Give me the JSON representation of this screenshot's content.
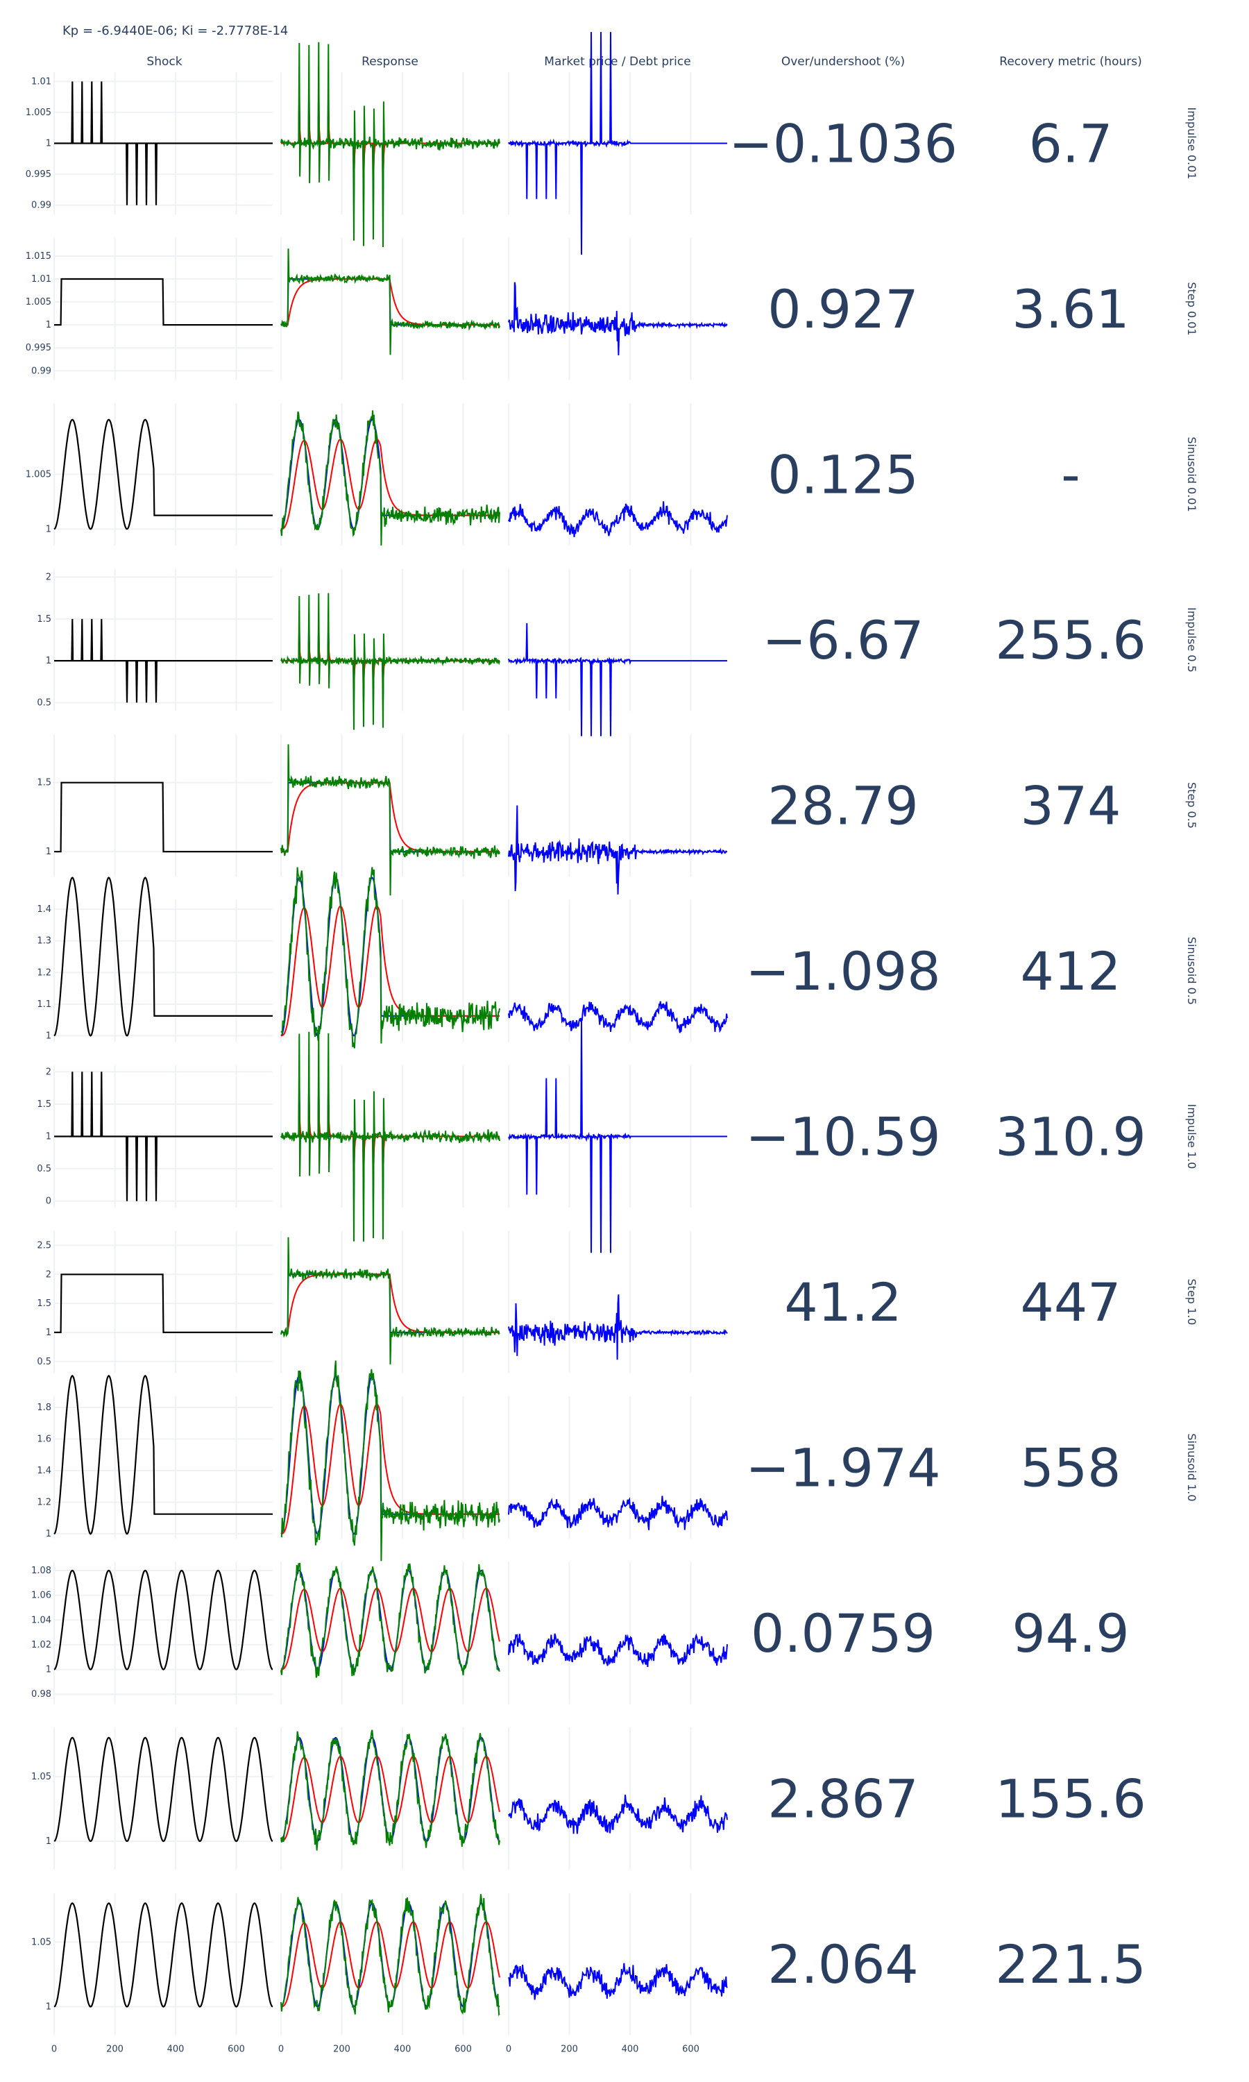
{
  "title": "Kp = -6.9440E-06; Ki = -2.7778E-14",
  "column_titles": [
    "Shock",
    "Response",
    "Market price / Debt price",
    "Over/undershoot (%)",
    "Recovery metric (hours)"
  ],
  "x_ticks": [
    "0",
    "200",
    "400",
    "600"
  ],
  "colors": {
    "shock": "#000000",
    "market": "#0000ff",
    "response_a": "#0000ff",
    "response_b": "#008000",
    "response_c": "#ff0000",
    "text": "#2a3f5f",
    "grid": "#eef1f5"
  },
  "chart_data": {
    "type": "line",
    "x_range": [
      0,
      720
    ],
    "rows": [
      {
        "label": "Impulse 0.01",
        "kind": "impulse",
        "magnitude": 0.01,
        "yticks": [
          "1.01",
          "1.005",
          "1",
          "0.995",
          "0.99"
        ],
        "ytick_values": [
          1.01,
          1.005,
          1,
          0.995,
          0.99
        ],
        "ylim": [
          0.9885,
          1.0115
        ],
        "overshoot": "−0.1036",
        "recovery": "6.7"
      },
      {
        "label": "Step 0.01",
        "kind": "step",
        "magnitude": 0.01,
        "yticks": [
          "1.015",
          "1.01",
          "1.005",
          "1",
          "0.995",
          "0.99"
        ],
        "ytick_values": [
          1.015,
          1.01,
          1.005,
          1,
          0.995,
          0.99
        ],
        "ylim": [
          0.988,
          1.019
        ],
        "overshoot": "0.927",
        "recovery": "3.61"
      },
      {
        "label": "Sinusoid 0.01",
        "kind": "sinusoid",
        "magnitude": 0.01,
        "yticks": [
          "1.005",
          "1"
        ],
        "ytick_values": [
          1.005,
          1
        ],
        "ylim": [
          0.9985,
          1.0115
        ],
        "overshoot": "0.125",
        "recovery": "-"
      },
      {
        "label": "Impulse 0.5",
        "kind": "impulse",
        "magnitude": 0.5,
        "yticks": [
          "2",
          "1.5",
          "1",
          "0.5"
        ],
        "ytick_values": [
          2,
          1.5,
          1,
          0.5
        ],
        "ylim": [
          0.4,
          2.1
        ],
        "overshoot": "−6.67",
        "recovery": "255.6"
      },
      {
        "label": "Step 0.5",
        "kind": "step",
        "magnitude": 0.5,
        "yticks": [
          "1.5",
          "1"
        ],
        "ytick_values": [
          1.5,
          1
        ],
        "ylim": [
          0.82,
          1.85
        ],
        "overshoot": "28.79",
        "recovery": "374"
      },
      {
        "label": "Sinusoid 0.5",
        "kind": "sinusoid",
        "magnitude": 0.5,
        "yticks": [
          "1.4",
          "1.3",
          "1.2",
          "1.1",
          "1"
        ],
        "ytick_values": [
          1.4,
          1.3,
          1.2,
          1.1,
          1
        ],
        "ylim": [
          0.98,
          1.43
        ],
        "overshoot": "−1.098",
        "recovery": "412"
      },
      {
        "label": "Impulse 1.0",
        "kind": "impulse",
        "magnitude": 1.0,
        "yticks": [
          "2",
          "1.5",
          "1",
          "0.5",
          "0"
        ],
        "ytick_values": [
          2,
          1.5,
          1,
          0.5,
          0
        ],
        "ylim": [
          -0.1,
          2.1
        ],
        "overshoot": "−10.59",
        "recovery": "310.9"
      },
      {
        "label": "Step 1.0",
        "kind": "step",
        "magnitude": 1.0,
        "yticks": [
          "2.5",
          "2",
          "1.5",
          "1",
          "0.5"
        ],
        "ytick_values": [
          2.5,
          2,
          1.5,
          1,
          0.5
        ],
        "ylim": [
          0.3,
          2.75
        ],
        "overshoot": "41.2",
        "recovery": "447"
      },
      {
        "label": "Sinusoid 1.0",
        "kind": "sinusoid",
        "magnitude": 1.0,
        "yticks": [
          "1.8",
          "1.6",
          "1.4",
          "1.2",
          "1"
        ],
        "ytick_values": [
          1.8,
          1.6,
          1.4,
          1.2,
          1
        ],
        "ylim": [
          0.97,
          1.87
        ],
        "overshoot": "−1.974",
        "recovery": "558"
      },
      {
        "label": "",
        "kind": "sine_long",
        "magnitude": 0.08,
        "yticks": [
          "1.08",
          "1.06",
          "1.04",
          "1.02",
          "1",
          "0.98"
        ],
        "ytick_values": [
          1.08,
          1.06,
          1.04,
          1.02,
          1,
          0.98
        ],
        "ylim": [
          0.972,
          1.087
        ],
        "overshoot": "0.0759",
        "recovery": "94.9"
      },
      {
        "label": "",
        "kind": "sine_long",
        "magnitude": 0.08,
        "yticks": [
          "1.05",
          "1"
        ],
        "ytick_values": [
          1.05,
          1
        ],
        "ylim": [
          0.978,
          1.088
        ],
        "overshoot": "2.867",
        "recovery": "155.6"
      },
      {
        "label": "",
        "kind": "sine_long",
        "magnitude": 0.08,
        "yticks": [
          "1.05",
          "1"
        ],
        "ytick_values": [
          1.05,
          1
        ],
        "ylim": [
          0.978,
          1.088
        ],
        "overshoot": "2.064",
        "recovery": "221.5"
      }
    ]
  }
}
